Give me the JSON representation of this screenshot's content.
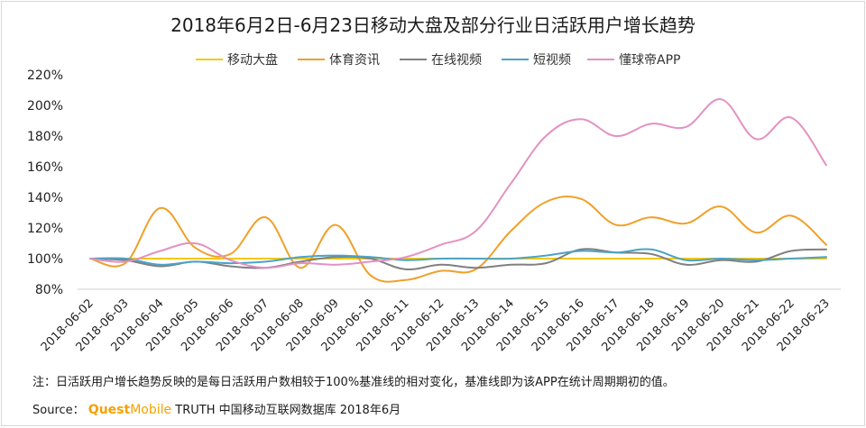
{
  "chart_data": {
    "type": "line",
    "title": "2018年6月2日-6月23日移动大盘及部分行业日活跃用户增长趋势",
    "xlabel": "",
    "ylabel": "",
    "ylim": [
      80,
      220
    ],
    "yticks": [
      80,
      100,
      120,
      140,
      160,
      180,
      200,
      220
    ],
    "ytick_labels": [
      "80%",
      "100%",
      "120%",
      "140%",
      "160%",
      "180%",
      "200%",
      "220%"
    ],
    "grid": false,
    "legend": "top",
    "x": [
      "2018-06-02",
      "2018-06-03",
      "2018-06-04",
      "2018-06-05",
      "2018-06-06",
      "2018-06-07",
      "2018-06-08",
      "2018-06-09",
      "2018-06-10",
      "2018-06-11",
      "2018-06-12",
      "2018-06-13",
      "2018-06-14",
      "2018-06-15",
      "2018-06-16",
      "2018-06-17",
      "2018-06-18",
      "2018-06-19",
      "2018-06-20",
      "2018-06-21",
      "2018-06-22",
      "2018-06-23"
    ],
    "series": [
      {
        "name": "移动大盘",
        "color": "#f2c811",
        "values": [
          100,
          100,
          100,
          100,
          100,
          100,
          100,
          100,
          100,
          100,
          100,
          100,
          100,
          100,
          100,
          100,
          100,
          100,
          100,
          100,
          100,
          100
        ]
      },
      {
        "name": "体育资讯",
        "color": "#f0a02a",
        "values": [
          100,
          97,
          133,
          107,
          103,
          127,
          94,
          122,
          89,
          86,
          92,
          93,
          118,
          137,
          139,
          122,
          127,
          123,
          134,
          117,
          128,
          109
        ]
      },
      {
        "name": "在线视频",
        "color": "#808080",
        "values": [
          100,
          99,
          95,
          98,
          95,
          94,
          98,
          101,
          100,
          93,
          96,
          94,
          96,
          97,
          106,
          104,
          103,
          96,
          99,
          98,
          105,
          106
        ]
      },
      {
        "name": "短视频",
        "color": "#4ba3c7",
        "values": [
          100,
          100,
          96,
          98,
          97,
          98,
          101,
          102,
          101,
          99,
          100,
          100,
          100,
          102,
          105,
          104,
          106,
          99,
          100,
          99,
          100,
          101
        ]
      },
      {
        "name": "懂球帝APP",
        "color": "#e391c2",
        "values": [
          100,
          98,
          105,
          110,
          99,
          94,
          97,
          96,
          98,
          101,
          109,
          118,
          149,
          180,
          191,
          180,
          188,
          186,
          204,
          178,
          192,
          161
        ]
      }
    ]
  },
  "footer": {
    "note": "注：日活跃用户增长趋势反映的是每日活跃用户数相较于100%基准线的相对变化，基准线即为该APP在统计周期期初的值。",
    "source_label": "Source：",
    "brand_main": "Quest",
    "brand_rest": "Mobile",
    "source_text": "TRUTH 中国移动互联网数据库 2018年6月"
  }
}
